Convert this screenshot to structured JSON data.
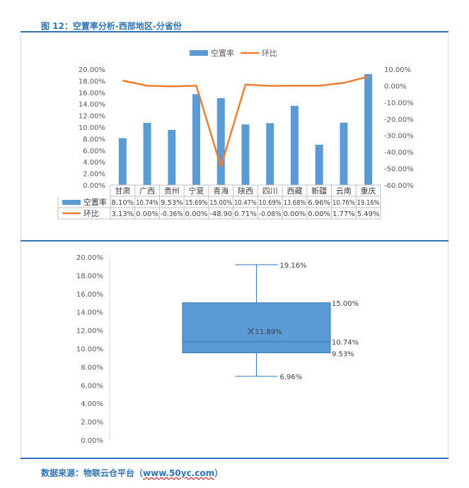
{
  "figure_title": "图 12：空置率分析-西部地区-分省份",
  "source": {
    "prefix": "数据来源：物联云仓平台（",
    "url": "www.50yc.com",
    "suffix": "）"
  },
  "chart_data": [
    {
      "type": "bar+line",
      "categories": [
        "甘肃",
        "广西",
        "贵州",
        "宁夏",
        "青海",
        "陕西",
        "四川",
        "西藏",
        "新疆",
        "云南",
        "重庆"
      ],
      "series": [
        {
          "name": "空置率",
          "type": "bar",
          "axis": "left",
          "color": "#5b9bd5",
          "values": [
            8.1,
            10.74,
            9.53,
            15.69,
            15.0,
            10.47,
            10.69,
            13.68,
            6.96,
            10.76,
            19.16
          ],
          "table_labels": [
            "8.10%",
            "10.74%",
            "9.53%",
            "15.69%",
            "15.00%",
            "10.47%",
            "10.69%",
            "13.68%",
            "6.96%",
            "10.76%",
            "19.16%"
          ]
        },
        {
          "name": "环比",
          "type": "line",
          "axis": "right",
          "color": "#ed7d31",
          "values": [
            3.13,
            0.0,
            -0.36,
            0.0,
            -48.9,
            0.71,
            -0.08,
            0.0,
            0.0,
            1.77,
            5.49
          ],
          "table_labels": [
            "3.13%",
            "0.00%",
            "-0.36%",
            "0.00%",
            "-48.90",
            "0.71%",
            "-0.08%",
            "0.00%",
            "0.00%",
            "1.77%",
            "5.49%"
          ]
        }
      ],
      "y_left": {
        "min": 0,
        "max": 20,
        "step": 2,
        "tick_labels": [
          "0.00%",
          "2.00%",
          "4.00%",
          "6.00%",
          "8.00%",
          "10.00%",
          "12.00%",
          "14.00%",
          "16.00%",
          "18.00%",
          "20.00%"
        ]
      },
      "y_right": {
        "min": -60,
        "max": 10,
        "step": 10,
        "tick_labels": [
          "-60.00%",
          "-50.00%",
          "-40.00%",
          "-30.00%",
          "-20.00%",
          "-10.00%",
          "0.00%",
          "10.00%"
        ]
      },
      "legend": {
        "placement": "top-center",
        "items": [
          "空置率",
          "环比"
        ]
      },
      "grid": false,
      "data_table": true
    },
    {
      "type": "box",
      "color": "#5b9bd5",
      "stats": {
        "min": 6.96,
        "q1": 9.53,
        "median": 10.74,
        "mean": 11.89,
        "q3": 15.0,
        "max": 19.16
      },
      "labels": {
        "min": "6.96%",
        "q1": "9.53%",
        "median": "10.74%",
        "mean": "11.89%",
        "q3": "15.00%",
        "max": "19.16%"
      },
      "y_axis": {
        "min": 0,
        "max": 20,
        "step": 2,
        "tick_labels": [
          "0.00%",
          "2.00%",
          "4.00%",
          "6.00%",
          "8.00%",
          "10.00%",
          "12.00%",
          "14.00%",
          "16.00%",
          "18.00%",
          "20.00%"
        ]
      },
      "grid": false
    }
  ]
}
